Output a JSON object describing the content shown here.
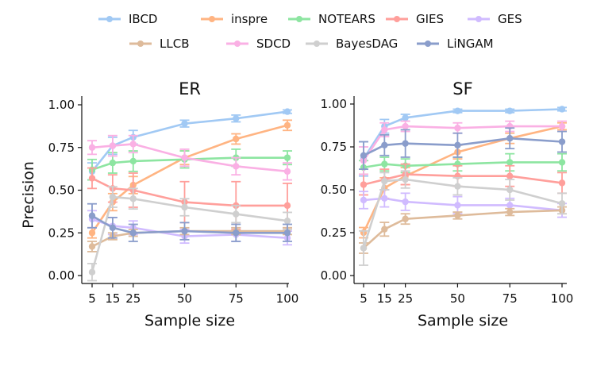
{
  "chart_data": [
    {
      "type": "line",
      "title": "ER",
      "xlabel": "Sample size",
      "ylabel": "Precision",
      "x": [
        5,
        15,
        25,
        50,
        75,
        100
      ],
      "xticks": [
        "5",
        "15",
        "25",
        "50",
        "75",
        "100"
      ],
      "ylim": [
        0,
        1
      ],
      "yticks": [
        "0.00",
        "0.25",
        "0.50",
        "0.75",
        "1.00"
      ],
      "series": [
        {
          "name": "IBCD",
          "color": "#a1c9f4",
          "values": [
            0.61,
            0.76,
            0.81,
            0.89,
            0.92,
            0.96
          ],
          "err": [
            0.05,
            0.05,
            0.04,
            0.02,
            0.02,
            0.01
          ]
        },
        {
          "name": "inspre",
          "color": "#ffb482",
          "values": [
            0.25,
            0.43,
            0.53,
            0.69,
            0.8,
            0.88
          ],
          "err": [
            0.03,
            0.05,
            0.05,
            0.04,
            0.03,
            0.03
          ]
        },
        {
          "name": "NOTEARS",
          "color": "#8de5a1",
          "values": [
            0.62,
            0.66,
            0.67,
            0.68,
            0.69,
            0.69
          ],
          "err": [
            0.06,
            0.06,
            0.06,
            0.05,
            0.05,
            0.04
          ]
        },
        {
          "name": "GIES",
          "color": "#ff9f9b",
          "values": [
            0.57,
            0.51,
            0.5,
            0.43,
            0.41,
            0.41
          ],
          "err": [
            0.06,
            0.08,
            0.1,
            0.12,
            0.14,
            0.13
          ]
        },
        {
          "name": "GES",
          "color": "#d0bbff",
          "values": [
            0.33,
            0.29,
            0.28,
            0.23,
            0.24,
            0.22
          ],
          "err": [
            0.05,
            0.05,
            0.04,
            0.04,
            0.04,
            0.04
          ]
        },
        {
          "name": "LLCB",
          "color": "#debb9b",
          "values": [
            0.17,
            0.23,
            0.25,
            0.26,
            0.26,
            0.26
          ],
          "err": [
            0.03,
            0.02,
            0.02,
            0.02,
            0.02,
            0.02
          ]
        },
        {
          "name": "SDCD",
          "color": "#fab0e4",
          "values": [
            0.75,
            0.76,
            0.77,
            0.69,
            0.64,
            0.61
          ],
          "err": [
            0.04,
            0.06,
            0.05,
            0.05,
            0.05,
            0.05
          ]
        },
        {
          "name": "BayesDAG",
          "color": "#cfcfcf",
          "values": [
            0.02,
            0.46,
            0.45,
            0.4,
            0.36,
            0.32
          ],
          "err": [
            0.05,
            0.06,
            0.06,
            0.05,
            0.05,
            0.05
          ]
        },
        {
          "name": "LiNGAM",
          "color": "#8a9dcb",
          "values": [
            0.35,
            0.28,
            0.25,
            0.26,
            0.25,
            0.25
          ],
          "err": [
            0.07,
            0.06,
            0.05,
            0.05,
            0.05,
            0.05
          ]
        }
      ]
    },
    {
      "type": "line",
      "title": "SF",
      "xlabel": "Sample size",
      "ylabel": "",
      "x": [
        5,
        15,
        25,
        50,
        75,
        100
      ],
      "xticks": [
        "5",
        "15",
        "25",
        "50",
        "75",
        "100"
      ],
      "ylim": [
        0,
        1
      ],
      "yticks": [
        "0.00",
        "0.25",
        "0.50",
        "0.75",
        "1.00"
      ],
      "series": [
        {
          "name": "IBCD",
          "color": "#a1c9f4",
          "values": [
            0.68,
            0.87,
            0.92,
            0.96,
            0.96,
            0.97
          ],
          "err": [
            0.1,
            0.04,
            0.02,
            0.01,
            0.01,
            0.01
          ]
        },
        {
          "name": "inspre",
          "color": "#ffb482",
          "values": [
            0.25,
            0.51,
            0.58,
            0.72,
            0.8,
            0.87
          ],
          "err": [
            0.03,
            0.06,
            0.05,
            0.04,
            0.03,
            0.02
          ]
        },
        {
          "name": "NOTEARS",
          "color": "#8de5a1",
          "values": [
            0.63,
            0.65,
            0.64,
            0.65,
            0.66,
            0.66
          ],
          "err": [
            0.04,
            0.04,
            0.04,
            0.04,
            0.05,
            0.05
          ]
        },
        {
          "name": "GIES",
          "color": "#ff9f9b",
          "values": [
            0.53,
            0.56,
            0.59,
            0.58,
            0.58,
            0.54
          ],
          "err": [
            0.06,
            0.06,
            0.06,
            0.06,
            0.06,
            0.06
          ]
        },
        {
          "name": "GES",
          "color": "#d0bbff",
          "values": [
            0.44,
            0.45,
            0.43,
            0.41,
            0.41,
            0.38
          ],
          "err": [
            0.05,
            0.05,
            0.05,
            0.05,
            0.04,
            0.04
          ]
        },
        {
          "name": "LLCB",
          "color": "#debb9b",
          "values": [
            0.16,
            0.27,
            0.33,
            0.35,
            0.37,
            0.38
          ],
          "err": [
            0.03,
            0.04,
            0.03,
            0.02,
            0.02,
            0.02
          ]
        },
        {
          "name": "SDCD",
          "color": "#fab0e4",
          "values": [
            0.67,
            0.85,
            0.87,
            0.86,
            0.87,
            0.87
          ],
          "err": [
            0.08,
            0.04,
            0.03,
            0.03,
            0.03,
            0.03
          ]
        },
        {
          "name": "BayesDAG",
          "color": "#cfcfcf",
          "values": [
            0.16,
            0.55,
            0.56,
            0.52,
            0.5,
            0.42
          ],
          "err": [
            0.1,
            0.05,
            0.05,
            0.05,
            0.06,
            0.06
          ]
        },
        {
          "name": "LiNGAM",
          "color": "#8a9dcb",
          "values": [
            0.7,
            0.76,
            0.77,
            0.76,
            0.8,
            0.78
          ],
          "err": [
            0.08,
            0.06,
            0.08,
            0.07,
            0.06,
            0.06
          ]
        }
      ]
    }
  ],
  "legend": {
    "placement": "top-center",
    "row1": [
      "IBCD",
      "inspre",
      "NOTEARS",
      "GIES",
      "GES"
    ],
    "row2": [
      "LLCB",
      "SDCD",
      "BayesDAG",
      "LiNGAM"
    ]
  }
}
